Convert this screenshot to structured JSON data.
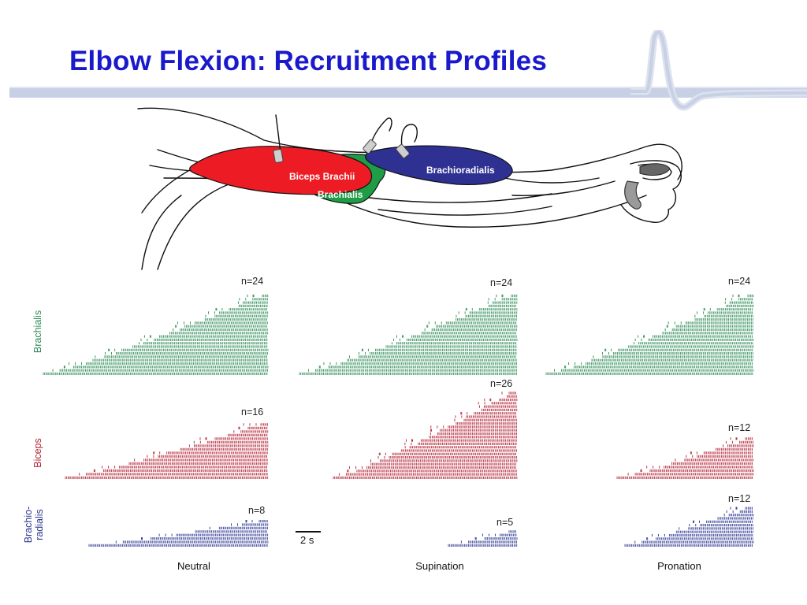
{
  "title": "Elbow Flexion: Recruitment Profiles",
  "diagram": {
    "muscles": [
      "Biceps Brachii",
      "Brachialis",
      "Brachioradialis"
    ]
  },
  "rows": [
    {
      "label": "Brachialis",
      "color": "#2e8b57"
    },
    {
      "label": "Biceps",
      "color": "#b22234"
    },
    {
      "label": "Brachio-\nradialis",
      "color": "#2b3590"
    }
  ],
  "columns": [
    "Neutral",
    "Supination",
    "Pronation"
  ],
  "panels": [
    {
      "muscle": "Brachialis",
      "condition": "Neutral",
      "n_label": "n=24",
      "n": 24
    },
    {
      "muscle": "Brachialis",
      "condition": "Supination",
      "n_label": "n=24",
      "n": 24
    },
    {
      "muscle": "Brachialis",
      "condition": "Pronation",
      "n_label": "n=24",
      "n": 24
    },
    {
      "muscle": "Biceps",
      "condition": "Neutral",
      "n_label": "n=16",
      "n": 16
    },
    {
      "muscle": "Biceps",
      "condition": "Supination",
      "n_label": "n=26",
      "n": 26
    },
    {
      "muscle": "Biceps",
      "condition": "Pronation",
      "n_label": "n=12",
      "n": 12
    },
    {
      "muscle": "Brachioradialis",
      "condition": "Neutral",
      "n_label": "n=8",
      "n": 8
    },
    {
      "muscle": "Brachioradialis",
      "condition": "Supination",
      "n_label": "n=5",
      "n": 5
    },
    {
      "muscle": "Brachioradialis",
      "condition": "Pronation",
      "n_label": "n=12",
      "n": 12
    }
  ],
  "scale_bar": {
    "label": "2 s"
  }
}
